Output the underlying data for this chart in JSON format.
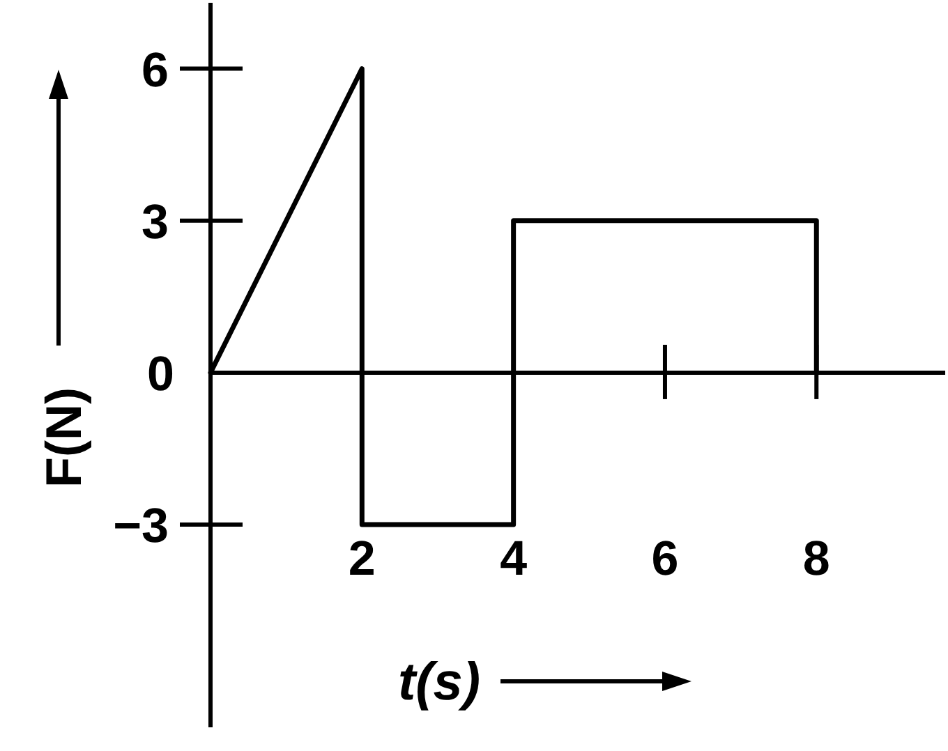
{
  "chart_data": {
    "type": "line",
    "xlabel": "t(s)",
    "ylabel": "F(N)",
    "x": [
      0,
      2,
      2,
      4,
      4,
      8,
      8
    ],
    "values": [
      0,
      6,
      -3,
      -3,
      3,
      3,
      0
    ],
    "color": "#000000",
    "xlim": [
      0,
      9.7
    ],
    "ylim": [
      -7,
      7.3
    ],
    "xticks": [
      2,
      4,
      6,
      8
    ],
    "yticks": [
      6,
      3,
      0,
      {
        "value": -3,
        "label": "−3"
      }
    ],
    "line_style": "solid"
  }
}
